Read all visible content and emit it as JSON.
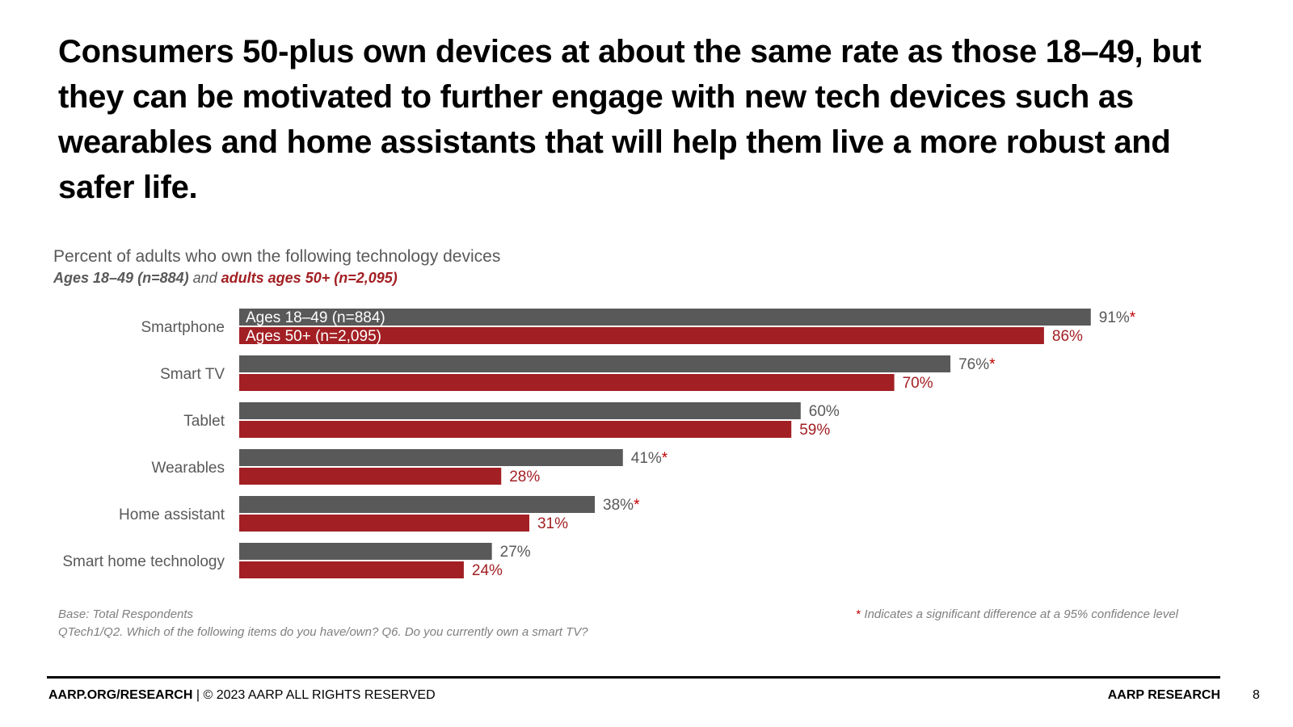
{
  "headline": "Consumers 50-plus own devices at about the same rate as those 18–49, but they can be motivated to further engage with new tech devices such as wearables and home assistants that will help them live a more robust and safer life.",
  "chart_data": {
    "type": "bar",
    "orientation": "horizontal",
    "title": "Percent of adults who own the following technology devices",
    "subtitle_part1": "Ages 18–49 (n=884)",
    "subtitle_and": " and ",
    "subtitle_part2": "adults ages 50+ (n=2,095)",
    "categories": [
      "Smartphone",
      "Smart TV",
      "Tablet",
      "Wearables",
      "Home assistant",
      "Smart home technology"
    ],
    "series": [
      {
        "name": "Ages 18–49 (n=884)",
        "color": "#595959",
        "label_color": "#595959",
        "values": [
          91,
          76,
          60,
          41,
          38,
          27
        ],
        "significant": [
          true,
          true,
          false,
          true,
          true,
          false
        ]
      },
      {
        "name": "Ages 50+ (n=2,095)",
        "color": "#a21f23",
        "label_color": "#a21f23",
        "values": [
          86,
          70,
          59,
          28,
          31,
          24
        ],
        "significant": [
          false,
          false,
          false,
          false,
          false,
          false
        ]
      }
    ],
    "value_suffix": "%",
    "significance_marker": "*",
    "significance_color": "#c00000",
    "xlim": [
      0,
      100
    ],
    "grid": false,
    "legend": "inside-first-bars"
  },
  "notes": {
    "base": "Base: Total Respondents",
    "question": "QTech1/Q2. Which of the following items do you have/own? Q6. Do you currently own a smart TV?",
    "significance_star": "*",
    "significance_text": " Indicates a significant difference at a 95% confidence level"
  },
  "footer": {
    "site": "AARP.ORG/RESEARCH",
    "rights": " | © 2023 AARP ALL RIGHTS RESERVED",
    "brand": "AARP RESEARCH",
    "page": "8"
  }
}
